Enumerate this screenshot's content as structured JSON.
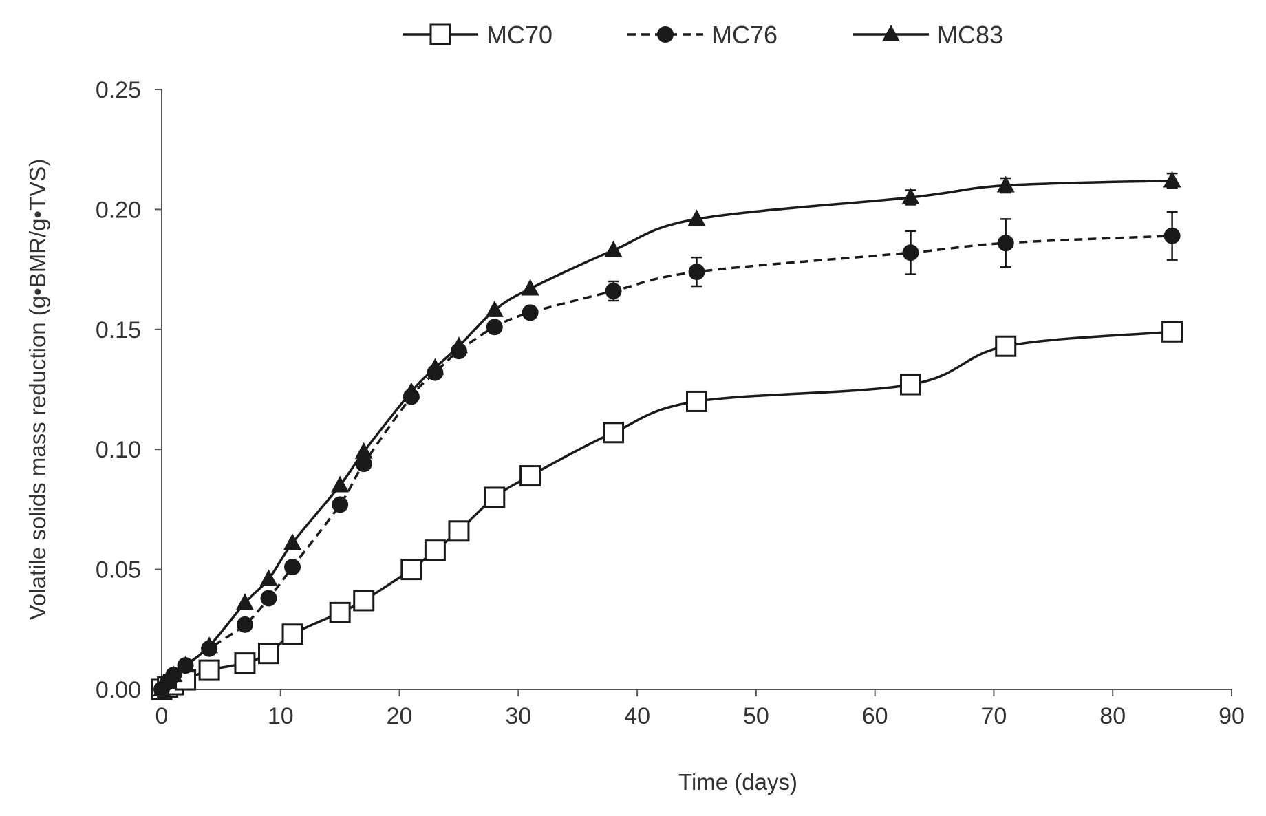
{
  "chart_data": {
    "type": "line",
    "title": "",
    "xlabel": "Time (days)",
    "ylabel": "Volatile solids mass reduction (g•BMR/g•TVS)",
    "xlim": [
      0,
      90
    ],
    "ylim": [
      0,
      0.25
    ],
    "xticks": [
      0,
      10,
      20,
      30,
      40,
      50,
      60,
      70,
      80,
      90
    ],
    "xtick_labels": [
      "0",
      "10",
      "20",
      "30",
      "40",
      "50",
      "60",
      "70",
      "80",
      "90"
    ],
    "yticks": [
      0,
      0.05,
      0.1,
      0.15,
      0.2,
      0.25
    ],
    "ytick_labels": [
      "0.00",
      "0.05",
      "0.10",
      "0.15",
      "0.20",
      "0.25"
    ],
    "grid": false,
    "legend_position": "top-center",
    "series": [
      {
        "name": "MC70",
        "marker": "open-square",
        "line": "solid",
        "x": [
          0,
          0.5,
          1,
          2,
          4,
          7,
          9,
          11,
          15,
          17,
          21,
          23,
          25,
          28,
          31,
          38,
          45,
          63,
          71,
          85
        ],
        "y": [
          0.0,
          0.001,
          0.002,
          0.004,
          0.008,
          0.011,
          0.015,
          0.023,
          0.032,
          0.037,
          0.05,
          0.058,
          0.066,
          0.08,
          0.089,
          0.107,
          0.12,
          0.127,
          0.143,
          0.149
        ],
        "err": [
          0,
          0,
          0,
          0,
          0,
          0,
          0,
          0,
          0,
          0,
          0,
          0,
          0,
          0,
          0,
          0,
          0,
          0.001,
          0.001,
          0.003
        ]
      },
      {
        "name": "MC76",
        "marker": "filled-circle",
        "line": "dashed",
        "x": [
          0,
          0.5,
          1,
          2,
          4,
          7,
          9,
          11,
          15,
          17,
          21,
          23,
          25,
          28,
          31,
          38,
          45,
          63,
          71,
          85
        ],
        "y": [
          0.0,
          0.003,
          0.006,
          0.01,
          0.017,
          0.027,
          0.038,
          0.051,
          0.077,
          0.094,
          0.122,
          0.132,
          0.141,
          0.151,
          0.157,
          0.166,
          0.174,
          0.182,
          0.186,
          0.189
        ],
        "err": [
          0,
          0,
          0,
          0,
          0,
          0,
          0,
          0,
          0,
          0,
          0,
          0,
          0,
          0,
          0,
          0.004,
          0.006,
          0.009,
          0.01,
          0.01
        ]
      },
      {
        "name": "MC83",
        "marker": "filled-triangle",
        "line": "solid",
        "x": [
          0,
          0.5,
          1,
          2,
          4,
          7,
          9,
          11,
          15,
          17,
          21,
          23,
          25,
          28,
          31,
          38,
          45,
          63,
          71,
          85
        ],
        "y": [
          0.0,
          0.003,
          0.006,
          0.01,
          0.018,
          0.036,
          0.046,
          0.061,
          0.085,
          0.099,
          0.124,
          0.134,
          0.143,
          0.158,
          0.167,
          0.183,
          0.196,
          0.205,
          0.21,
          0.212
        ],
        "err": [
          0,
          0,
          0,
          0,
          0,
          0,
          0,
          0,
          0,
          0,
          0,
          0,
          0,
          0,
          0,
          0,
          0,
          0.003,
          0.003,
          0.003
        ]
      }
    ]
  }
}
